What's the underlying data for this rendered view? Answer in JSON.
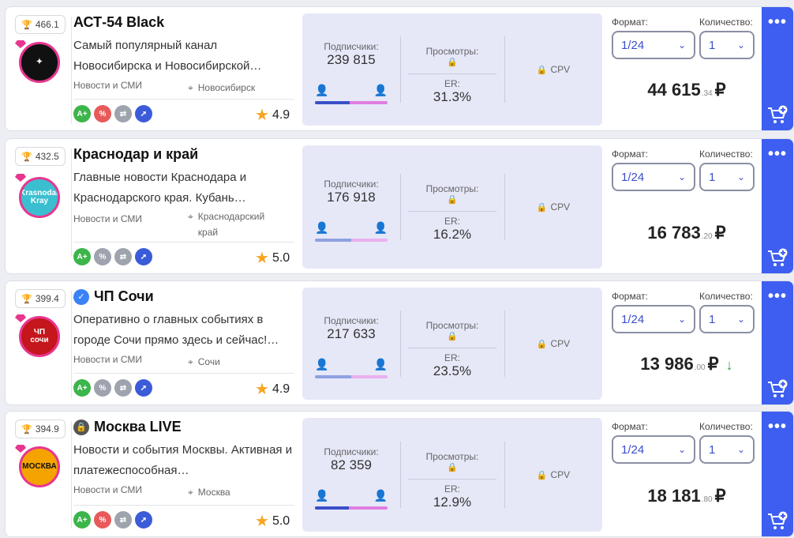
{
  "labels": {
    "subscribers": "Подписчики:",
    "views": "Просмотры:",
    "er": "ER:",
    "cpv": "CPV",
    "format": "Формат:",
    "quantity": "Количество:",
    "currency": "₽"
  },
  "colors": {
    "accent": "#3d5ef0",
    "pink": "#e8368f",
    "male": "#3a4fc7",
    "female": "#e07de0",
    "green": "#3cb54a",
    "red": "#e85a5a",
    "gray": "#9ea3ad",
    "blue_icon": "#3c5bd8"
  },
  "channels": [
    {
      "rank": "466.1",
      "name": "АСТ-54 Black",
      "desc": "Самый популярный канал Новосибирска и Новосибирской…",
      "category": "Новости и СМИ",
      "city": "Новосибирск",
      "rating": "4.9",
      "subscribers": "239 815",
      "er": "31.3%",
      "male_share": 0.48,
      "format": "1/24",
      "quantity": "1",
      "price_main": "44 615",
      "price_cents": ".34"
    },
    {
      "rank": "432.5",
      "name": "Краснодар и край",
      "desc": "Главные новости Краснодара и Краснодарского края. Кубань…",
      "category": "Новости и СМИ",
      "city": "Краснодарский край",
      "rating": "5.0",
      "subscribers": "176 918",
      "er": "16.2%",
      "male_share": 0.5,
      "format": "1/24",
      "quantity": "1",
      "price_main": "16 783",
      "price_cents": ".20"
    },
    {
      "rank": "399.4",
      "name": "ЧП Сочи",
      "desc": "Оперативно о главных событиях в городе Сочи прямо здесь и сейчас!…",
      "category": "Новости и СМИ",
      "city": "Сочи",
      "rating": "4.9",
      "subscribers": "217 633",
      "er": "23.5%",
      "male_share": 0.5,
      "format": "1/24",
      "quantity": "1",
      "price_main": "13 986",
      "price_cents": ".00"
    },
    {
      "rank": "394.9",
      "name": "Москва LIVE",
      "desc": "Новости и события Москвы. Активная и платежеспособная…",
      "category": "Новости и СМИ",
      "city": "Москва",
      "rating": "5.0",
      "subscribers": "82 359",
      "er": "12.9%",
      "male_share": 0.47,
      "format": "1/24",
      "quantity": "1",
      "price_main": "18 181",
      "price_cents": ".80"
    }
  ]
}
